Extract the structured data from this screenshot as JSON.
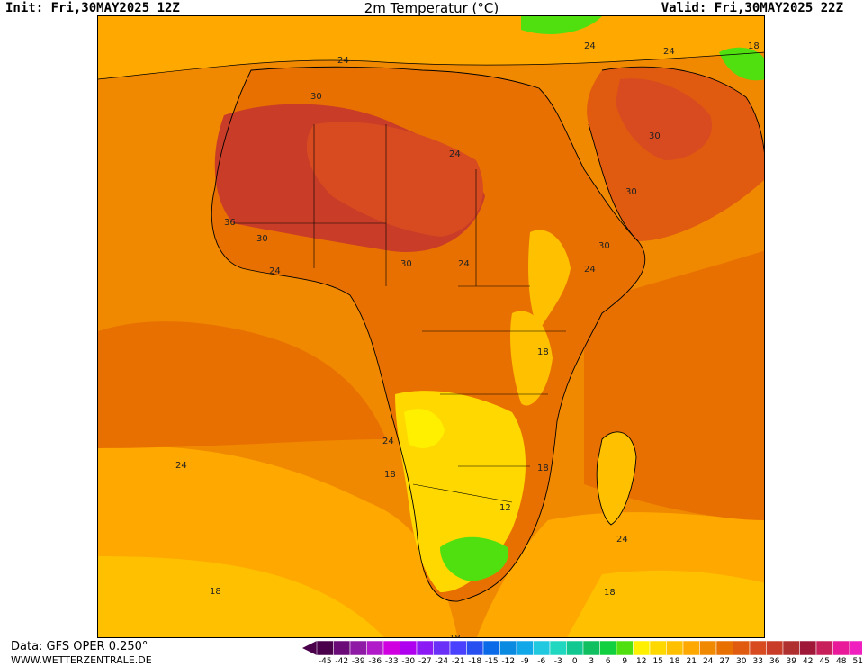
{
  "header": {
    "init": "Init: Fri,30MAY2025 12Z",
    "title": "2m Temperatur (°C)",
    "valid": "Valid: Fri,30MAY2025 22Z"
  },
  "footer": {
    "data_source": "Data: GFS OPER 0.250°",
    "website": "WWW.WETTERZENTRALE.DE"
  },
  "colorbar": {
    "unit": "°C",
    "ticks": [
      "-45",
      "-42",
      "-39",
      "-36",
      "-33",
      "-30",
      "-27",
      "-24",
      "-21",
      "-18",
      "-15",
      "-12",
      "-9",
      "-6",
      "-3",
      "0",
      "3",
      "6",
      "9",
      "12",
      "15",
      "18",
      "21",
      "24",
      "27",
      "30",
      "33",
      "36",
      "39",
      "42",
      "45",
      "48",
      "51"
    ],
    "colors": [
      "#4a004a",
      "#6a0b78",
      "#8e1aa6",
      "#b01ac8",
      "#d000e0",
      "#b000f0",
      "#8c1af5",
      "#6a30f8",
      "#4a40ff",
      "#2850f0",
      "#0a6ae8",
      "#0a8ae0",
      "#10a8e8",
      "#20c8e0",
      "#20d8c0",
      "#10c890",
      "#10c060",
      "#10d040",
      "#50e010",
      "#fff000",
      "#ffd800",
      "#ffc000",
      "#ffa800",
      "#f08800",
      "#e87000",
      "#e05a10",
      "#d84a20",
      "#c83c28",
      "#b03030",
      "#a01838",
      "#c8205a",
      "#e81a9a",
      "#f020c0"
    ]
  },
  "contour_labels": [
    {
      "text": "24"
    },
    {
      "text": "30"
    },
    {
      "text": "24"
    },
    {
      "text": "36"
    },
    {
      "text": "30"
    },
    {
      "text": "24"
    },
    {
      "text": "30"
    },
    {
      "text": "24"
    },
    {
      "text": "24"
    },
    {
      "text": "24"
    },
    {
      "text": "30"
    },
    {
      "text": "30"
    },
    {
      "text": "30"
    },
    {
      "text": "24"
    },
    {
      "text": "18"
    },
    {
      "text": "18"
    },
    {
      "text": "24"
    },
    {
      "text": "24"
    },
    {
      "text": "18"
    },
    {
      "text": "18"
    },
    {
      "text": "12"
    },
    {
      "text": "24"
    },
    {
      "text": "18"
    },
    {
      "text": "18"
    },
    {
      "text": "18"
    }
  ]
}
